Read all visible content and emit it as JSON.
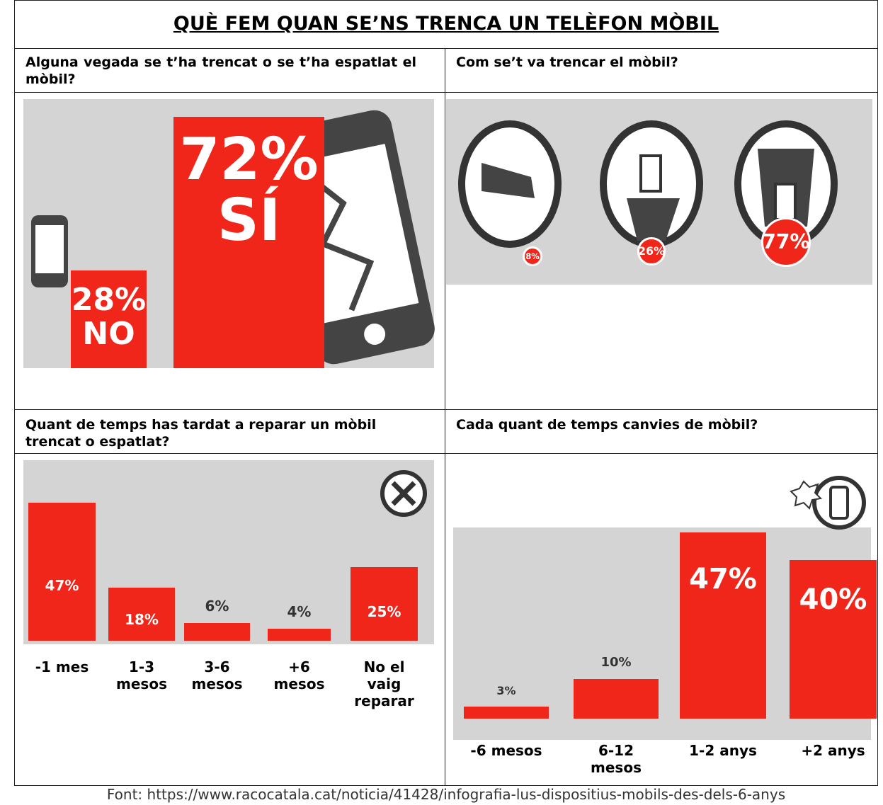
{
  "title": "QUÈ FEM QUAN SE’NS TRENCA UN TELÈFON MÒBIL",
  "questions": [
    "Alguna vegada se t’ha trencat o se t’ha espatlat el mòbil?",
    "Com se’t va trencar el mòbil?",
    "Quant de temps has tardat a reparar un mòbil trencat o espatlat?",
    "Cada quant de temps canvies de mòbil?"
  ],
  "chart_data": [
    {
      "type": "bar",
      "categories": [
        "NO",
        "SÍ"
      ],
      "values": [
        28,
        72
      ],
      "value_labels": [
        "28%",
        "72%"
      ],
      "color": "#f0261b"
    },
    {
      "type": "pictogram",
      "categories": [
        null,
        null,
        null
      ],
      "values": [
        8,
        26,
        77
      ],
      "value_labels": [
        "8%",
        "26%",
        "77%"
      ],
      "color": "#f0261b"
    },
    {
      "type": "bar",
      "categories": [
        "-1 mes",
        "1-3 mesos",
        "3-6 mesos",
        "+6 mesos",
        "No el vaig reparar"
      ],
      "values": [
        47,
        18,
        6,
        4,
        25
      ],
      "value_labels": [
        "47%",
        "18%",
        "6%",
        "4%",
        "25%"
      ],
      "color": "#f0261b"
    },
    {
      "type": "bar",
      "categories": [
        "-6 mesos",
        "6-12 mesos",
        "1-2 anys",
        "+2 anys"
      ],
      "values": [
        3,
        10,
        47,
        40
      ],
      "value_labels": [
        "3%",
        "10%",
        "47%",
        "40%"
      ],
      "color": "#f0261b"
    }
  ],
  "source": "Font: https://www.racocatala.cat/noticia/41428/infografia-lus-dispositius-mobils-des-dels-6-anys"
}
